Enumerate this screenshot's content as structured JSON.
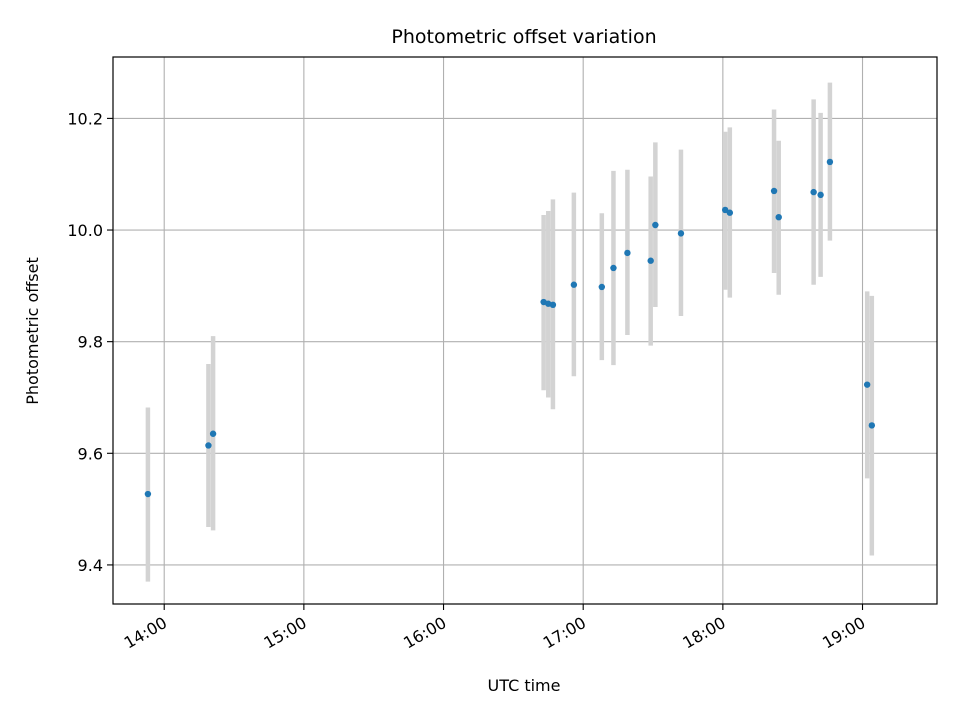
{
  "chart_data": {
    "type": "scatter",
    "title": "Photometric offset variation",
    "xlabel": "UTC time",
    "ylabel": "Photometric offset",
    "grid": true,
    "xlim": [
      "13:38",
      "19:32"
    ],
    "ylim": [
      9.33,
      10.31
    ],
    "x_ticks": [
      "14:00",
      "15:00",
      "16:00",
      "17:00",
      "18:00",
      "19:00"
    ],
    "y_ticks": [
      9.4,
      9.6,
      9.8,
      10.0,
      10.2
    ],
    "y_tick_labels": [
      "9.4",
      "9.6",
      "9.8",
      "10.0",
      "10.2"
    ],
    "colors": {
      "points": "#1f77b4",
      "errorbars": "#d3d3d3",
      "grid": "#b0b0b0"
    },
    "points": [
      {
        "x": "13:53",
        "y": 9.527,
        "ylow": 9.37,
        "yhigh": 9.682
      },
      {
        "x": "14:19",
        "y": 9.614,
        "ylow": 9.468,
        "yhigh": 9.76
      },
      {
        "x": "14:21",
        "y": 9.635,
        "ylow": 9.462,
        "yhigh": 9.81
      },
      {
        "x": "16:43",
        "y": 9.871,
        "ylow": 9.713,
        "yhigh": 10.027
      },
      {
        "x": "16:45",
        "y": 9.868,
        "ylow": 9.7,
        "yhigh": 10.034
      },
      {
        "x": "16:47",
        "y": 9.866,
        "ylow": 9.679,
        "yhigh": 10.055
      },
      {
        "x": "16:56",
        "y": 9.902,
        "ylow": 9.738,
        "yhigh": 10.067
      },
      {
        "x": "17:08",
        "y": 9.898,
        "ylow": 9.767,
        "yhigh": 10.03
      },
      {
        "x": "17:13",
        "y": 9.932,
        "ylow": 9.758,
        "yhigh": 10.106
      },
      {
        "x": "17:19",
        "y": 9.959,
        "ylow": 9.812,
        "yhigh": 10.108
      },
      {
        "x": "17:29",
        "y": 9.945,
        "ylow": 9.793,
        "yhigh": 10.096
      },
      {
        "x": "17:31",
        "y": 10.009,
        "ylow": 9.862,
        "yhigh": 10.157
      },
      {
        "x": "17:42",
        "y": 9.994,
        "ylow": 9.846,
        "yhigh": 10.144
      },
      {
        "x": "18:01",
        "y": 10.036,
        "ylow": 9.893,
        "yhigh": 10.176
      },
      {
        "x": "18:03",
        "y": 10.031,
        "ylow": 9.879,
        "yhigh": 10.184
      },
      {
        "x": "18:22",
        "y": 10.07,
        "ylow": 9.923,
        "yhigh": 10.216
      },
      {
        "x": "18:24",
        "y": 10.023,
        "ylow": 9.884,
        "yhigh": 10.16
      },
      {
        "x": "18:39",
        "y": 10.068,
        "ylow": 9.902,
        "yhigh": 10.234
      },
      {
        "x": "18:42",
        "y": 10.063,
        "ylow": 9.916,
        "yhigh": 10.21
      },
      {
        "x": "18:46",
        "y": 10.122,
        "ylow": 9.981,
        "yhigh": 10.264
      },
      {
        "x": "19:02",
        "y": 9.723,
        "ylow": 9.555,
        "yhigh": 9.89
      },
      {
        "x": "19:04",
        "y": 9.65,
        "ylow": 9.417,
        "yhigh": 9.882
      }
    ]
  }
}
